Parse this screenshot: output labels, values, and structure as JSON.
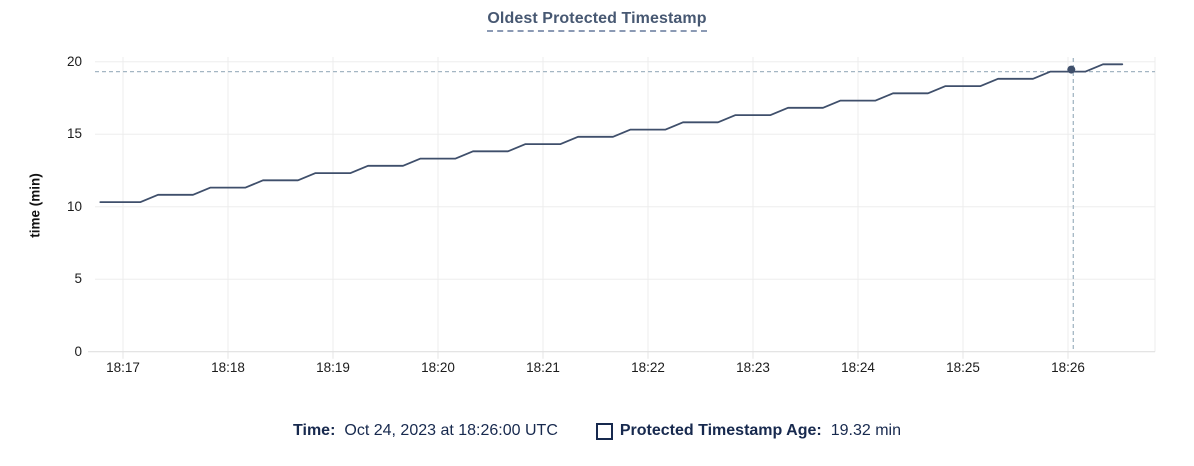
{
  "title": {
    "text": "Oldest Protected Timestamp"
  },
  "y_axis": {
    "label": "time (min)",
    "ticks": [
      0,
      5,
      10,
      15,
      20
    ]
  },
  "x_axis": {
    "tick_labels": [
      "18:17",
      "18:18",
      "18:19",
      "18:20",
      "18:21",
      "18:22",
      "18:23",
      "18:24",
      "18:25",
      "18:26"
    ]
  },
  "legend": {
    "time_label": "Time:",
    "time_value": "Oct 24, 2023 at 18:26:00 UTC",
    "series_label": "Protected Timestamp Age:",
    "series_value": "19.32 min",
    "swatch_icon": "unchecked-square"
  },
  "colors": {
    "title": "#475872",
    "title_underline": "#8b9ab4",
    "line": "#3f4f6b",
    "dot": "#3f4f6b",
    "crosshair": "#a4b6c3",
    "grid": "#ededed",
    "axis_line": "#e0e0e0",
    "tick_mark": "#e4e4e4",
    "axis_text": "#1c1c1c",
    "legend_text": "#17294e",
    "background": "#ffffff"
  },
  "chart_data": {
    "type": "line",
    "title": "Oldest Protected Timestamp",
    "xlabel": "",
    "ylabel": "time (min)",
    "ylim": [
      0,
      20.3
    ],
    "grid": true,
    "legend_position": "bottom",
    "x_tick_labels": [
      "18:17",
      "18:18",
      "18:19",
      "18:20",
      "18:21",
      "18:22",
      "18:23",
      "18:24",
      "18:25",
      "18:26"
    ],
    "x_tick_interval_seconds": 60,
    "series": [
      {
        "name": "Protected Timestamp Age",
        "unit": "min",
        "pattern": "staircase: flat ~20s then ramp +0.5 min over ~10s, every 30s",
        "t_seconds_after_18_17": [
          -13,
          10,
          20,
          40,
          50,
          70,
          80,
          100,
          110,
          130,
          140,
          160,
          170,
          190,
          200,
          220,
          230,
          250,
          260,
          280,
          290,
          310,
          320,
          340,
          350,
          370,
          380,
          400,
          410,
          430,
          440,
          460,
          470,
          490,
          500,
          520,
          530,
          550,
          560,
          571
        ],
        "values_min": [
          10.32,
          10.32,
          10.82,
          10.82,
          11.32,
          11.32,
          11.82,
          11.82,
          12.32,
          12.32,
          12.82,
          12.82,
          13.32,
          13.32,
          13.82,
          13.82,
          14.32,
          14.32,
          14.82,
          14.82,
          15.32,
          15.32,
          15.82,
          15.82,
          16.32,
          16.32,
          16.82,
          16.82,
          17.32,
          17.32,
          17.82,
          17.82,
          18.32,
          18.32,
          18.82,
          18.82,
          19.32,
          19.32,
          19.82,
          19.82
        ]
      }
    ],
    "hover": {
      "time": "Oct 24, 2023 at 18:26:00 UTC",
      "x_label": "18:26",
      "x_seconds_after_18_17": 543,
      "value_min": 19.32
    }
  }
}
